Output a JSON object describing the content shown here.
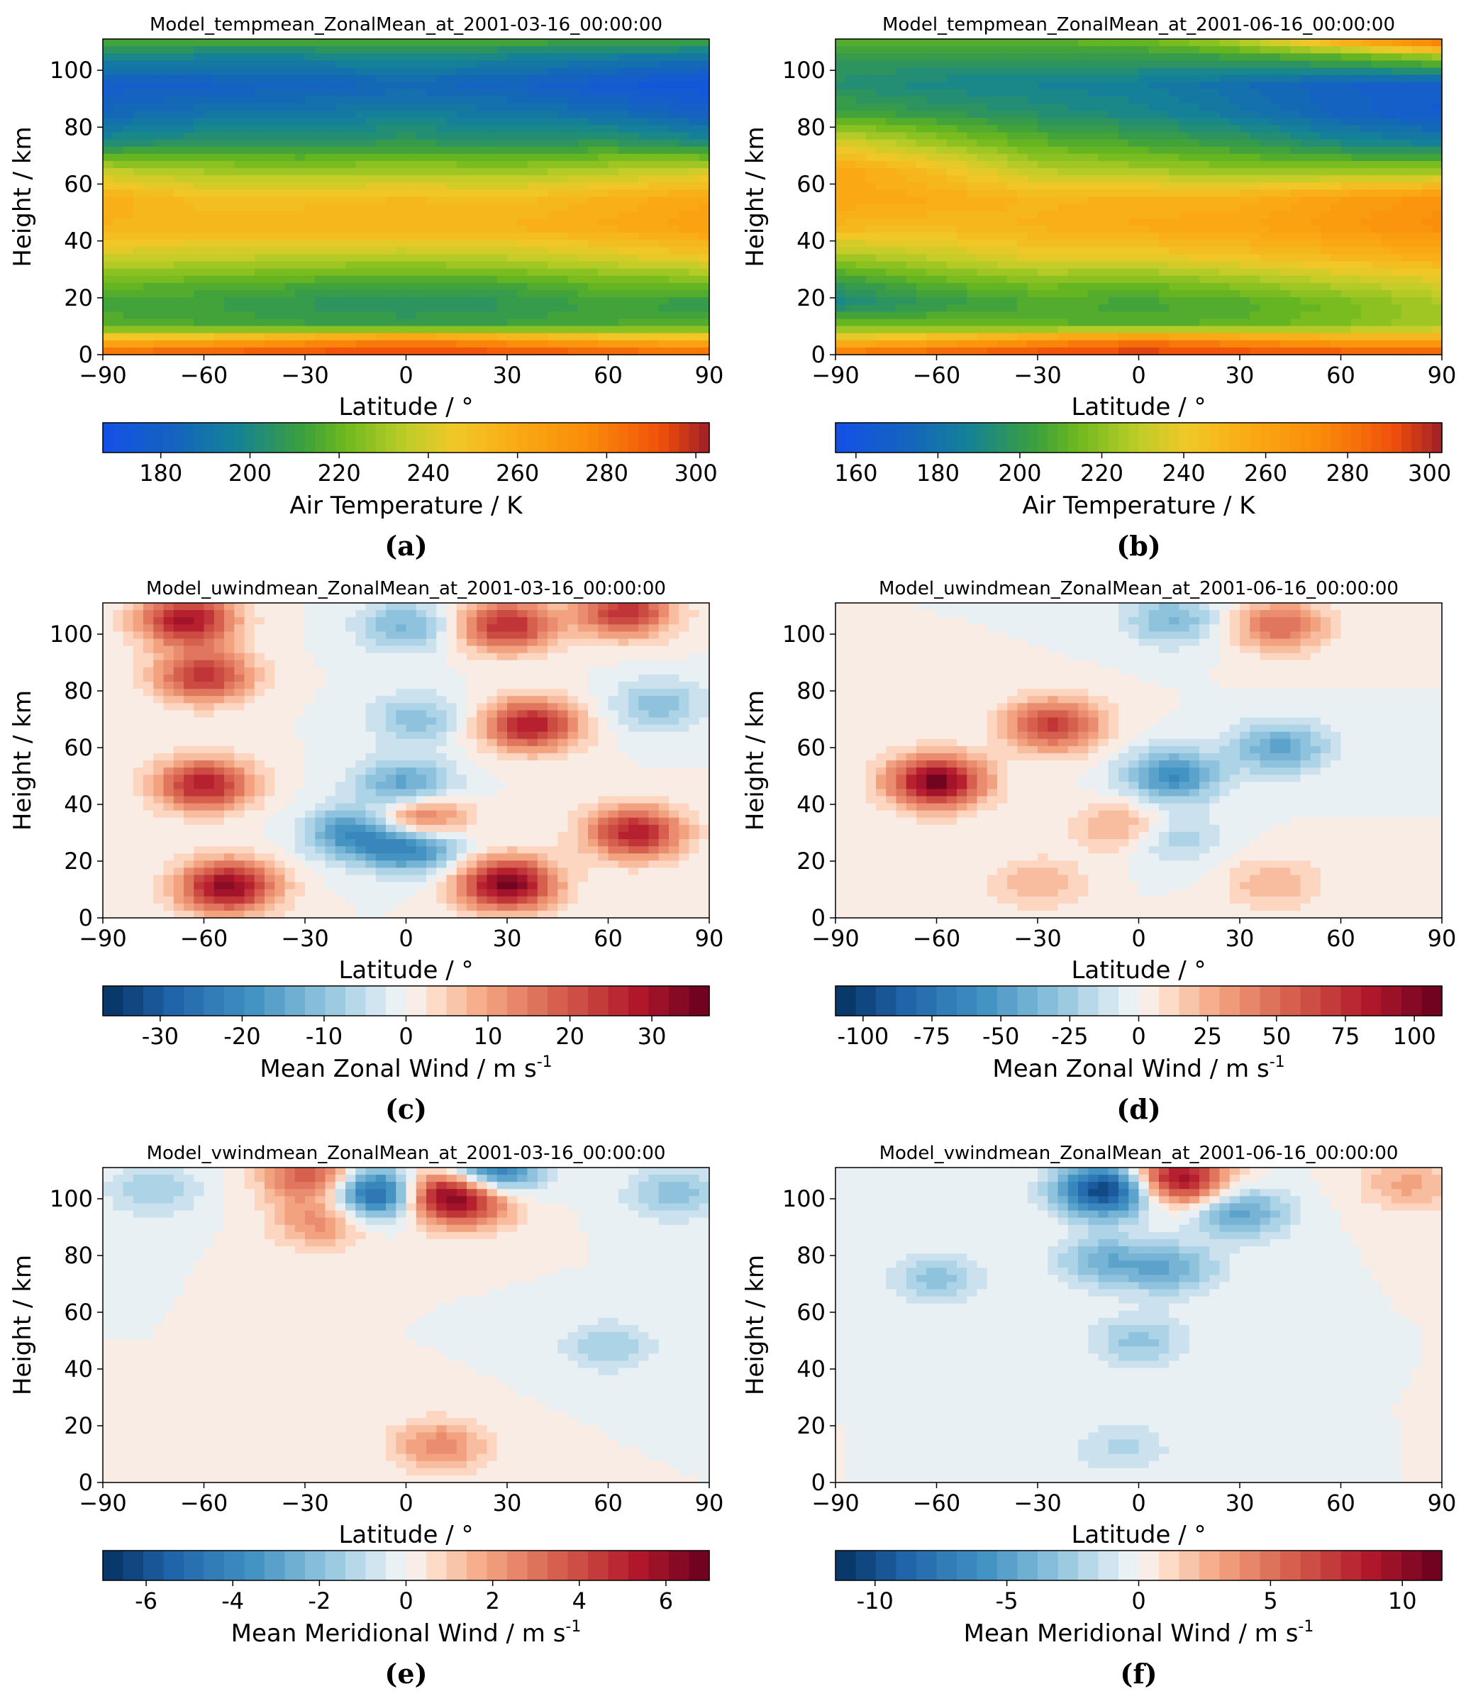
{
  "figure": {
    "panels": [
      {
        "id": "a",
        "label": "(a)"
      },
      {
        "id": "b",
        "label": "(b)"
      },
      {
        "id": "c",
        "label": "(c)"
      },
      {
        "id": "d",
        "label": "(d)"
      },
      {
        "id": "e",
        "label": "(e)"
      },
      {
        "id": "f",
        "label": "(f)"
      }
    ]
  },
  "chart_data": [
    {
      "id": "a",
      "type": "heatmap",
      "title": "Model_tempmean_ZonalMean_at_2001-03-16_00:00:00",
      "xlabel": "Latitude / °",
      "ylabel": "Height / km",
      "x_ticks": [
        -90,
        -60,
        -30,
        0,
        30,
        60,
        90
      ],
      "y_ticks": [
        0,
        20,
        40,
        60,
        80,
        100
      ],
      "xlim": [
        -90,
        90
      ],
      "ylim": [
        0,
        111
      ],
      "colorbar": {
        "label": "Air Temperature / K",
        "range": [
          167,
          303
        ],
        "ticks": [
          180,
          200,
          220,
          240,
          260,
          280,
          300
        ],
        "colormap": "temperature"
      },
      "description_points": {
        "height_km": [
          0,
          5,
          10,
          18,
          25,
          35,
          45,
          55,
          65,
          75,
          85,
          95,
          105,
          111
        ],
        "latitude": [
          -90,
          -60,
          -30,
          0,
          30,
          60,
          90
        ],
        "values_K": [
          [
            290,
            292,
            295,
            298,
            295,
            292,
            288
          ],
          [
            255,
            260,
            270,
            278,
            270,
            260,
            255
          ],
          [
            218,
            215,
            212,
            210,
            212,
            215,
            218
          ],
          [
            212,
            211,
            207,
            205,
            207,
            212,
            208
          ],
          [
            220,
            218,
            215,
            213,
            215,
            220,
            222
          ],
          [
            240,
            238,
            236,
            235,
            237,
            242,
            248
          ],
          [
            255,
            255,
            256,
            256,
            256,
            260,
            265
          ],
          [
            258,
            250,
            250,
            252,
            250,
            256,
            262
          ],
          [
            235,
            230,
            228,
            230,
            228,
            233,
            238
          ],
          [
            200,
            205,
            205,
            207,
            205,
            207,
            200
          ],
          [
            185,
            190,
            192,
            195,
            192,
            188,
            180
          ],
          [
            178,
            180,
            182,
            185,
            182,
            175,
            170
          ],
          [
            200,
            198,
            198,
            200,
            198,
            195,
            192
          ],
          [
            215,
            215,
            215,
            218,
            215,
            215,
            215
          ]
        ]
      }
    },
    {
      "id": "b",
      "type": "heatmap",
      "title": "Model_tempmean_ZonalMean_at_2001-06-16_00:00:00",
      "xlabel": "Latitude / °",
      "ylabel": "Height / km",
      "x_ticks": [
        -90,
        -60,
        -30,
        0,
        30,
        60,
        90
      ],
      "y_ticks": [
        0,
        20,
        40,
        60,
        80,
        100
      ],
      "xlim": [
        -90,
        90
      ],
      "ylim": [
        0,
        111
      ],
      "colorbar": {
        "label": "Air Temperature / K",
        "range": [
          155,
          303
        ],
        "ticks": [
          160,
          180,
          200,
          220,
          240,
          260,
          280,
          300
        ],
        "colormap": "temperature"
      },
      "description_points": {
        "height_km": [
          0,
          5,
          10,
          18,
          25,
          35,
          45,
          55,
          65,
          75,
          85,
          95,
          105,
          111
        ],
        "latitude": [
          -90,
          -60,
          -30,
          0,
          30,
          60,
          90
        ],
        "values_K": [
          [
            285,
            290,
            295,
            298,
            295,
            292,
            290
          ],
          [
            245,
            255,
            268,
            278,
            270,
            262,
            260
          ],
          [
            215,
            214,
            212,
            210,
            212,
            218,
            225
          ],
          [
            190,
            200,
            207,
            205,
            208,
            215,
            225
          ],
          [
            200,
            210,
            216,
            214,
            220,
            228,
            235
          ],
          [
            225,
            232,
            240,
            240,
            245,
            250,
            255
          ],
          [
            250,
            248,
            252,
            256,
            258,
            265,
            272
          ],
          [
            258,
            255,
            250,
            252,
            253,
            262,
            268
          ],
          [
            258,
            245,
            228,
            225,
            220,
            220,
            222
          ],
          [
            235,
            222,
            210,
            205,
            200,
            190,
            185
          ],
          [
            205,
            200,
            195,
            190,
            182,
            172,
            165
          ],
          [
            195,
            190,
            188,
            185,
            178,
            170,
            168
          ],
          [
            200,
            200,
            200,
            200,
            205,
            212,
            225
          ],
          [
            210,
            210,
            212,
            215,
            230,
            260,
            290
          ]
        ]
      }
    },
    {
      "id": "c",
      "type": "heatmap",
      "title": "Model_uwindmean_ZonalMean_at_2001-03-16_00:00:00",
      "xlabel": "Latitude / °",
      "ylabel": "Height / km",
      "x_ticks": [
        -90,
        -60,
        -30,
        0,
        30,
        60,
        90
      ],
      "y_ticks": [
        0,
        20,
        40,
        60,
        80,
        100
      ],
      "xlim": [
        -90,
        90
      ],
      "ylim": [
        0,
        111
      ],
      "colorbar": {
        "label": "Mean Zonal Wind / m s⁻¹",
        "range": [
          -37,
          37
        ],
        "ticks": [
          -30,
          -20,
          -10,
          0,
          10,
          20,
          30
        ],
        "tick_labels": [
          "-30",
          "-20",
          "-10",
          "0",
          "10",
          "20",
          "30"
        ],
        "colormap": "RdBu_r"
      },
      "features_m_s": [
        {
          "lat": -65,
          "height_km": 105,
          "value": 30
        },
        {
          "lat": -60,
          "height_km": 85,
          "value": 25
        },
        {
          "lat": -60,
          "height_km": 47,
          "value": 28
        },
        {
          "lat": -53,
          "height_km": 11,
          "value": 33
        },
        {
          "lat": 30,
          "height_km": 12,
          "value": 35
        },
        {
          "lat": 68,
          "height_km": 30,
          "value": 28
        },
        {
          "lat": 37,
          "height_km": 68,
          "value": 28
        },
        {
          "lat": 30,
          "height_km": 103,
          "value": 26
        },
        {
          "lat": 65,
          "height_km": 108,
          "value": 25
        },
        {
          "lat": 3,
          "height_km": 34,
          "value": 28
        },
        {
          "lat": 2,
          "height_km": 26,
          "value": -28
        },
        {
          "lat": -15,
          "height_km": 30,
          "value": -20
        },
        {
          "lat": 0,
          "height_km": 46,
          "value": -18
        },
        {
          "lat": 0,
          "height_km": 103,
          "value": -12
        },
        {
          "lat": 3,
          "height_km": 70,
          "value": -10
        },
        {
          "lat": 75,
          "height_km": 75,
          "value": -10
        }
      ]
    },
    {
      "id": "d",
      "type": "heatmap",
      "title": "Model_uwindmean_ZonalMean_at_2001-06-16_00:00:00",
      "xlabel": "Latitude / °",
      "ylabel": "Height / km",
      "x_ticks": [
        -90,
        -60,
        -30,
        0,
        30,
        60,
        90
      ],
      "y_ticks": [
        0,
        20,
        40,
        60,
        80,
        100
      ],
      "xlim": [
        -90,
        90
      ],
      "ylim": [
        0,
        111
      ],
      "colorbar": {
        "label": "Mean Zonal Wind / m s⁻¹",
        "range": [
          -110,
          110
        ],
        "ticks": [
          -100,
          -75,
          -50,
          -25,
          0,
          25,
          50,
          75,
          100
        ],
        "tick_labels": [
          "-100",
          "-75",
          "-50",
          "-25",
          "0",
          "25",
          "50",
          "75",
          "100"
        ],
        "colormap": "RdBu_r"
      },
      "features_m_s": [
        {
          "lat": -60,
          "height_km": 48,
          "value": 105
        },
        {
          "lat": -25,
          "height_km": 68,
          "value": 70
        },
        {
          "lat": 42,
          "height_km": 103,
          "value": 50
        },
        {
          "lat": -5,
          "height_km": 32,
          "value": 30
        },
        {
          "lat": 40,
          "height_km": 12,
          "value": 25
        },
        {
          "lat": -30,
          "height_km": 12,
          "value": 25
        },
        {
          "lat": 10,
          "height_km": 50,
          "value": -60
        },
        {
          "lat": 42,
          "height_km": 60,
          "value": -45
        },
        {
          "lat": 10,
          "height_km": 105,
          "value": -35
        },
        {
          "lat": 10,
          "height_km": 28,
          "value": -25
        }
      ]
    },
    {
      "id": "e",
      "type": "heatmap",
      "title": "Model_vwindmean_ZonalMean_at_2001-03-16_00:00:00",
      "xlabel": "Latitude / °",
      "ylabel": "Height / km",
      "x_ticks": [
        -90,
        -60,
        -30,
        0,
        30,
        60,
        90
      ],
      "y_ticks": [
        0,
        20,
        40,
        60,
        80,
        100
      ],
      "xlim": [
        -90,
        90
      ],
      "ylim": [
        0,
        111
      ],
      "colorbar": {
        "label": "Mean Meridional Wind / m s⁻¹",
        "range": [
          -7,
          7
        ],
        "ticks": [
          -6,
          -4,
          -2,
          0,
          2,
          4,
          6
        ],
        "tick_labels": [
          "-6",
          "-4",
          "-2",
          "0",
          "2",
          "4",
          "6"
        ],
        "colormap": "RdBu_r"
      },
      "features_m_s": [
        {
          "lat": -8,
          "height_km": 102,
          "value": -6.5
        },
        {
          "lat": 10,
          "height_km": 102,
          "value": 6
        },
        {
          "lat": 25,
          "height_km": 110,
          "value": -5
        },
        {
          "lat": 20,
          "height_km": 98,
          "value": 3
        },
        {
          "lat": -28,
          "height_km": 108,
          "value": 4
        },
        {
          "lat": -25,
          "height_km": 92,
          "value": 2.5
        },
        {
          "lat": 60,
          "height_km": 48,
          "value": -1.5
        },
        {
          "lat": 10,
          "height_km": 13,
          "value": 2.5
        },
        {
          "lat": 80,
          "height_km": 102,
          "value": -2
        },
        {
          "lat": -75,
          "height_km": 103,
          "value": -1.5
        }
      ]
    },
    {
      "id": "f",
      "type": "heatmap",
      "title": "Model_vwindmean_ZonalMean_at_2001-06-16_00:00:00",
      "xlabel": "Latitude / °",
      "ylabel": "Height / km",
      "x_ticks": [
        -90,
        -60,
        -30,
        0,
        30,
        60,
        90
      ],
      "y_ticks": [
        0,
        20,
        40,
        60,
        80,
        100
      ],
      "xlim": [
        -90,
        90
      ],
      "ylim": [
        0,
        111
      ],
      "colorbar": {
        "label": "Mean Meridional Wind / m s⁻¹",
        "range": [
          -11.5,
          11.5
        ],
        "ticks": [
          -10,
          -5,
          0,
          5,
          10
        ],
        "tick_labels": [
          "-10",
          "-5",
          "0",
          "5",
          "10"
        ],
        "colormap": "RdBu_r"
      },
      "features_m_s": [
        {
          "lat": -10,
          "height_km": 103,
          "value": -11
        },
        {
          "lat": 12,
          "height_km": 107,
          "value": 10
        },
        {
          "lat": 30,
          "height_km": 95,
          "value": -5
        },
        {
          "lat": -10,
          "height_km": 78,
          "value": -4
        },
        {
          "lat": 10,
          "height_km": 75,
          "value": -4
        },
        {
          "lat": -60,
          "height_km": 72,
          "value": -3
        },
        {
          "lat": 0,
          "height_km": 50,
          "value": -3
        },
        {
          "lat": -5,
          "height_km": 12,
          "value": -2
        },
        {
          "lat": 80,
          "height_km": 105,
          "value": 3
        }
      ]
    }
  ]
}
